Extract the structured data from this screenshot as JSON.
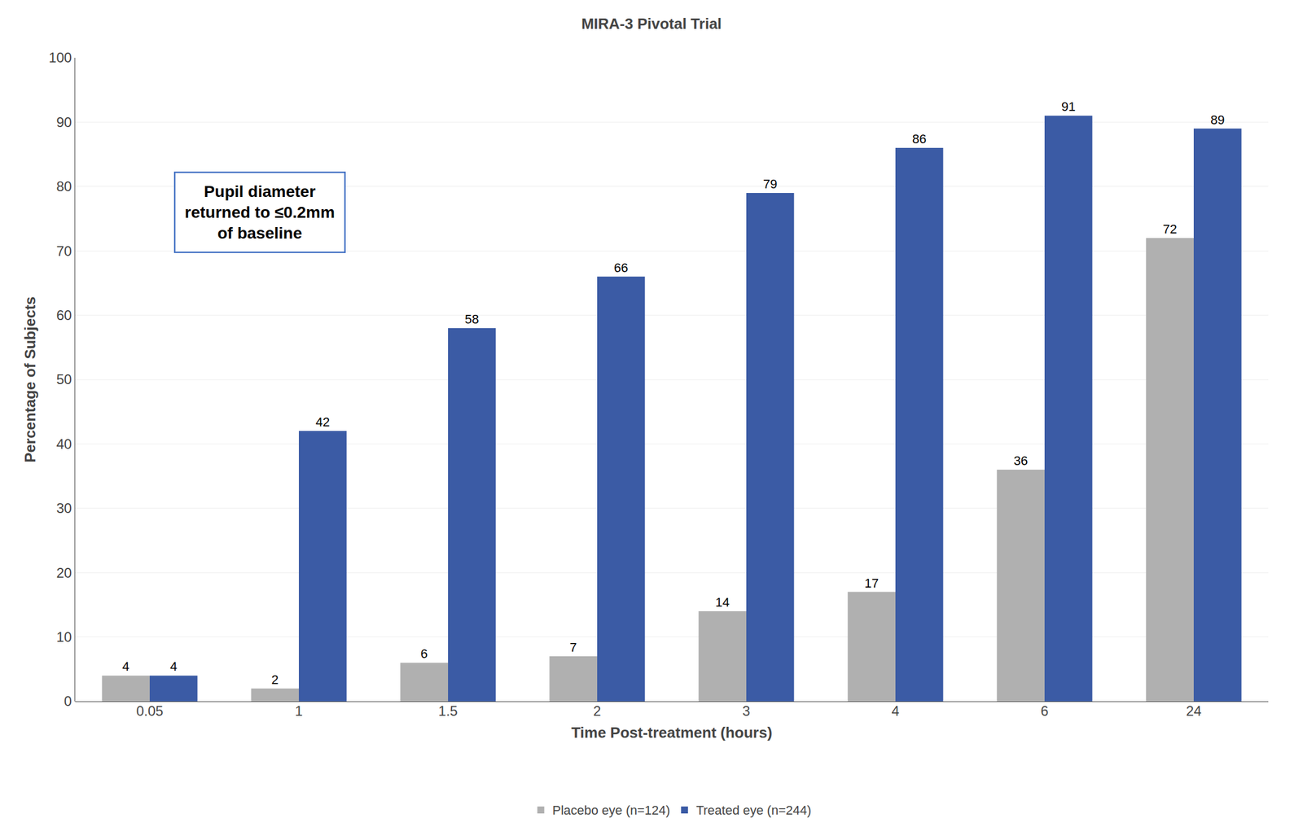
{
  "chart_data": {
    "type": "bar",
    "title": "MIRA-3 Pivotal Trial",
    "xlabel": "Time Post-treatment (hours)",
    "ylabel": "Percentage of Subjects",
    "categories": [
      "0.05",
      "1",
      "1.5",
      "2",
      "3",
      "4",
      "6",
      "24"
    ],
    "series": [
      {
        "name": "Placebo eye (n=124)",
        "color": "#b0b0b0",
        "values": [
          4,
          2,
          6,
          7,
          14,
          17,
          36,
          72
        ]
      },
      {
        "name": "Treated eye (n=244)",
        "color": "#3B5BA5",
        "values": [
          4,
          42,
          58,
          66,
          79,
          86,
          91,
          89
        ]
      }
    ],
    "ylim": [
      0,
      100
    ],
    "yticks": [
      0,
      10,
      20,
      30,
      40,
      50,
      60,
      70,
      80,
      90,
      100
    ],
    "grid": true,
    "legend": "bottom",
    "data_labels": true,
    "annotation": "Pupil diameter\nreturned to ≤0.2mm\nof baseline"
  }
}
